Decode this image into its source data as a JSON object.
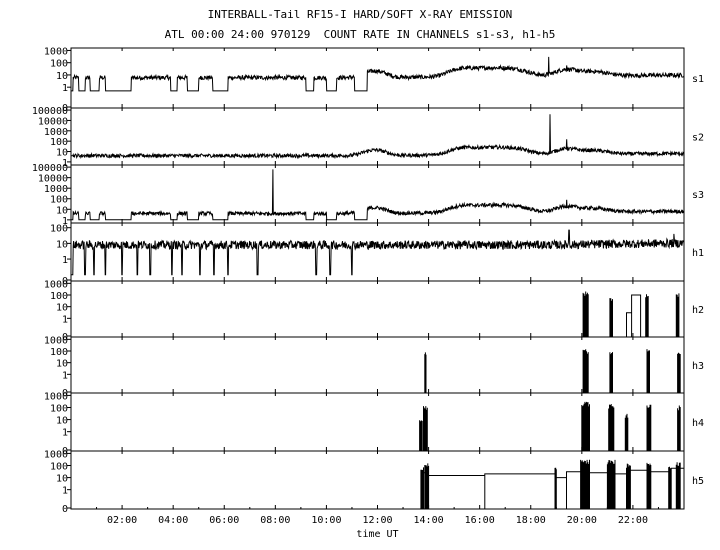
{
  "chart_data": {
    "type": "line",
    "title": "INTERBALL-Tail RF15-I HARD/SOFT X-RAY EMISSION",
    "subtitle": "ATL 00:00 24:00 970129  COUNT RATE IN CHANNELS s1-s3, h1-h5",
    "xlabel": "time UT",
    "x_unit": "hours UT",
    "xlim": [
      0,
      24
    ],
    "x_tick_values": [
      2,
      4,
      6,
      8,
      10,
      12,
      14,
      16,
      18,
      20,
      22
    ],
    "x_tick_labels": [
      "02:00",
      "04:00",
      "06:00",
      "08:00",
      "10:00",
      "12:00",
      "14:00",
      "16:00",
      "18:00",
      "20:00",
      "22:00"
    ],
    "y_scale": "log",
    "panels": [
      {
        "name": "s1",
        "ylim_decades": [
          -1.7,
          3.2
        ],
        "y_tick_labels": [
          "1000",
          "100",
          "10",
          "1",
          "0"
        ],
        "y_tick_decades": [
          3,
          2,
          1,
          0
        ],
        "baseline": 6,
        "dropout_level": 0.5,
        "spikes": [
          {
            "t": 18.7,
            "v": 300
          },
          {
            "t": 19.4,
            "v": 60
          }
        ],
        "gaps": [
          [
            0.3,
            0.55
          ],
          [
            0.75,
            1.1
          ],
          [
            1.35,
            2.35
          ],
          [
            3.9,
            4.15
          ],
          [
            4.55,
            5.0
          ],
          [
            5.55,
            6.15
          ],
          [
            9.2,
            9.5
          ],
          [
            10.0,
            10.4
          ],
          [
            11.1,
            11.6
          ]
        ]
      },
      {
        "name": "s2",
        "ylim_decades": [
          -0.3,
          5.2
        ],
        "y_tick_labels": [
          "100000",
          "10000",
          "1000",
          "100",
          "10",
          "1"
        ],
        "y_tick_decades": [
          5,
          4,
          3,
          2,
          1,
          0
        ],
        "baseline": 4,
        "spikes": [
          {
            "t": 18.75,
            "v": 40000
          },
          {
            "t": 19.4,
            "v": 150
          }
        ],
        "gaps": []
      },
      {
        "name": "s3",
        "ylim_decades": [
          -0.3,
          5.2
        ],
        "y_tick_labels": [
          "100000",
          "10000",
          "1000",
          "100",
          "10",
          "1"
        ],
        "y_tick_decades": [
          5,
          4,
          3,
          2,
          1,
          0
        ],
        "baseline": 4,
        "dropout_level": 1,
        "spikes": [
          {
            "t": 7.9,
            "v": 60000
          },
          {
            "t": 19.4,
            "v": 80
          }
        ],
        "gaps": [
          [
            0.3,
            0.55
          ],
          [
            0.75,
            1.1
          ],
          [
            1.35,
            2.35
          ],
          [
            3.9,
            4.15
          ],
          [
            4.55,
            5.0
          ],
          [
            5.55,
            6.15
          ],
          [
            9.2,
            9.5
          ],
          [
            10.0,
            10.4
          ],
          [
            11.1,
            11.6
          ]
        ]
      },
      {
        "name": "h1",
        "ylim_decades": [
          -1.4,
          2.3
        ],
        "y_tick_labels": [
          "100",
          "10",
          "1",
          "0"
        ],
        "y_tick_decades": [
          2,
          1,
          0
        ],
        "baseline": 8,
        "dropout_level": 0.1,
        "spikes": [
          {
            "t": 19.5,
            "v": 70
          },
          {
            "t": 23.6,
            "v": 40
          }
        ],
        "dropouts": [
          0.55,
          0.9,
          1.35,
          2.0,
          2.6,
          3.1,
          3.95,
          4.35,
          5.05,
          5.6,
          6.15,
          7.3,
          9.6,
          10.15,
          11.0
        ]
      },
      {
        "name": "h2",
        "ylim_decades": [
          -1.6,
          3.2
        ],
        "y_tick_labels": [
          "1000",
          "100",
          "10",
          "1",
          "0"
        ],
        "y_tick_decades": [
          3,
          2,
          1,
          0
        ],
        "bursts": [
          {
            "t0": 20.05,
            "t1": 20.25,
            "v": 200
          },
          {
            "t0": 21.1,
            "t1": 21.2,
            "v": 70
          },
          {
            "t0": 22.5,
            "t1": 22.6,
            "v": 150
          },
          {
            "t0": 23.7,
            "t1": 23.8,
            "v": 150
          }
        ],
        "steps": [
          {
            "t0": 21.75,
            "t1": 21.95,
            "v": 3
          },
          {
            "t0": 21.95,
            "t1": 22.3,
            "v": 100
          }
        ]
      },
      {
        "name": "h3",
        "ylim_decades": [
          -1.6,
          3.2
        ],
        "y_tick_labels": [
          "1000",
          "100",
          "10",
          "1",
          "0"
        ],
        "y_tick_decades": [
          3,
          2,
          1,
          0
        ],
        "bursts": [
          {
            "t0": 13.85,
            "t1": 13.9,
            "v": 80
          },
          {
            "t0": 20.05,
            "t1": 20.25,
            "v": 150
          },
          {
            "t0": 21.1,
            "t1": 21.2,
            "v": 100
          },
          {
            "t0": 22.55,
            "t1": 22.65,
            "v": 150
          },
          {
            "t0": 23.75,
            "t1": 23.85,
            "v": 120
          }
        ],
        "steps": []
      },
      {
        "name": "h4",
        "ylim_decades": [
          -1.6,
          3.2
        ],
        "y_tick_labels": [
          "1000",
          "100",
          "10",
          "1",
          "0"
        ],
        "y_tick_decades": [
          3,
          2,
          1,
          0
        ],
        "bursts": [
          {
            "t0": 13.65,
            "t1": 13.75,
            "v": 15
          },
          {
            "t0": 13.8,
            "t1": 13.95,
            "v": 150
          },
          {
            "t0": 20.0,
            "t1": 20.3,
            "v": 300
          },
          {
            "t0": 21.05,
            "t1": 21.25,
            "v": 200
          },
          {
            "t0": 21.7,
            "t1": 21.8,
            "v": 30
          },
          {
            "t0": 22.55,
            "t1": 22.7,
            "v": 200
          },
          {
            "t0": 23.75,
            "t1": 23.85,
            "v": 150
          }
        ],
        "steps": []
      },
      {
        "name": "h5",
        "ylim_decades": [
          -1.6,
          3.2
        ],
        "y_tick_labels": [
          "1000",
          "100",
          "10",
          "1",
          "0"
        ],
        "y_tick_decades": [
          3,
          2,
          1,
          0
        ],
        "bursts": [
          {
            "t0": 13.7,
            "t1": 13.8,
            "v": 100
          },
          {
            "t0": 13.85,
            "t1": 14.0,
            "v": 200
          },
          {
            "t0": 18.95,
            "t1": 19.0,
            "v": 100
          },
          {
            "t0": 19.95,
            "t1": 20.3,
            "v": 300
          },
          {
            "t0": 21.0,
            "t1": 21.3,
            "v": 300
          },
          {
            "t0": 21.75,
            "t1": 21.9,
            "v": 150
          },
          {
            "t0": 22.55,
            "t1": 22.7,
            "v": 250
          },
          {
            "t0": 23.4,
            "t1": 23.5,
            "v": 100
          },
          {
            "t0": 23.7,
            "t1": 23.85,
            "v": 200
          }
        ],
        "steps": [
          {
            "t0": 13.75,
            "t1": 14.0,
            "v": 25
          },
          {
            "t0": 14.0,
            "t1": 16.2,
            "v": 15
          },
          {
            "t0": 16.2,
            "t1": 18.95,
            "v": 20
          },
          {
            "t0": 18.95,
            "t1": 19.4,
            "v": 10
          },
          {
            "t0": 19.4,
            "t1": 19.95,
            "v": 30
          },
          {
            "t0": 20.3,
            "t1": 21.0,
            "v": 25
          },
          {
            "t0": 21.3,
            "t1": 21.75,
            "v": 20
          },
          {
            "t0": 21.9,
            "t1": 22.55,
            "v": 40
          },
          {
            "t0": 22.7,
            "t1": 23.4,
            "v": 30
          },
          {
            "t0": 23.5,
            "t1": 24.0,
            "v": 60
          }
        ]
      }
    ],
    "grid": false,
    "legend": "none",
    "line_color": "#000000"
  }
}
